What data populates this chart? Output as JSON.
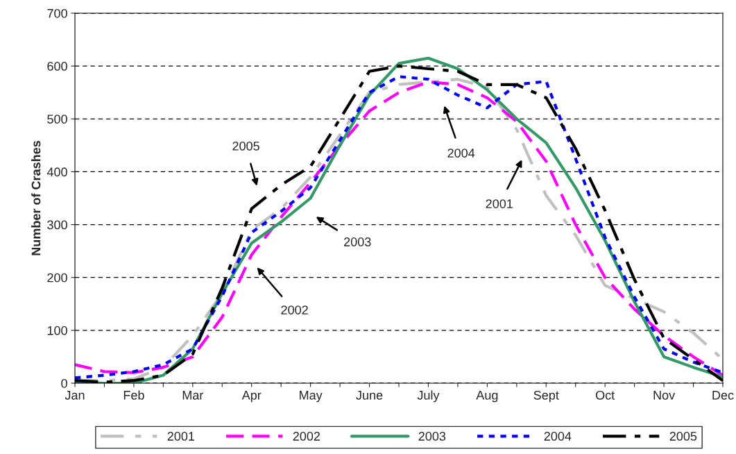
{
  "chart_data": {
    "type": "line",
    "ylabel": "Number of Crashes",
    "categories": [
      "Jan",
      null,
      "Feb",
      null,
      "Mar",
      null,
      "Apr",
      null,
      "May",
      null,
      "June",
      null,
      "July",
      null,
      "Aug",
      null,
      "Sept",
      null,
      "Oct",
      null,
      "Nov",
      null,
      "Dec"
    ],
    "ylim": [
      0,
      700
    ],
    "yticks": [
      0,
      100,
      200,
      300,
      400,
      500,
      600,
      700
    ],
    "grid": "y",
    "legend": "bottom",
    "series": [
      {
        "name": "2001",
        "color": "#c0c0c0",
        "line_style": "dashed",
        "values": [
          5,
          5,
          8,
          30,
          90,
          170,
          290,
          330,
          390,
          470,
          550,
          565,
          570,
          575,
          560,
          480,
          355,
          280,
          185,
          160,
          135,
          95,
          45
        ]
      },
      {
        "name": "2002",
        "color": "#ff00ff",
        "line_style": "dashed",
        "values": [
          35,
          22,
          20,
          30,
          50,
          125,
          243,
          314,
          380,
          450,
          515,
          550,
          570,
          565,
          540,
          495,
          420,
          300,
          200,
          140,
          90,
          50,
          15
        ]
      },
      {
        "name": "2003",
        "color": "#339966",
        "line_style": "solid",
        "values": [
          3,
          0,
          0,
          15,
          65,
          170,
          265,
          305,
          350,
          450,
          545,
          605,
          615,
          595,
          555,
          500,
          455,
          370,
          270,
          154,
          50,
          30,
          12
        ]
      },
      {
        "name": "2004",
        "color": "#0000ff",
        "line_style": "dotted",
        "values": [
          10,
          15,
          22,
          35,
          65,
          165,
          285,
          325,
          370,
          460,
          550,
          580,
          575,
          545,
          521,
          565,
          571,
          425,
          276,
          163,
          65,
          40,
          20
        ]
      },
      {
        "name": "2005",
        "color": "#000000",
        "line_style": "dashed",
        "values": [
          5,
          2,
          5,
          15,
          55,
          180,
          330,
          375,
          410,
          500,
          590,
          600,
          595,
          590,
          565,
          565,
          540,
          444,
          327,
          196,
          85,
          45,
          5
        ]
      }
    ],
    "annotations": [
      "2005",
      "2003",
      "2002",
      "2004",
      "2001"
    ]
  }
}
